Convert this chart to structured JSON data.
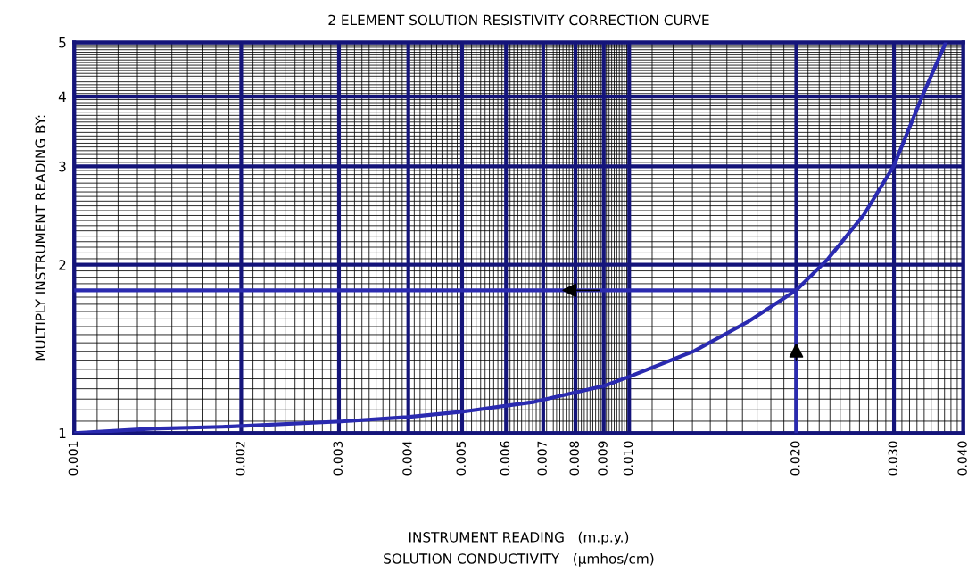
{
  "chart_data": {
    "type": "line",
    "title": "2 ELEMENT SOLUTION RESISTIVITY CORRECTION CURVE",
    "xlabel": "INSTRUMENT READING   (m.p.y.)\nSOLUTION CONDUCTIVITY   (μmhos/cm)",
    "ylabel": "MULTIPLY INSTRUMENT READING BY:",
    "log": "xy",
    "grid": true,
    "marker": "none",
    "line_style": "solid",
    "xlim": [
      0.001,
      0.04
    ],
    "ylim": [
      1,
      5
    ],
    "xticks": [
      0.001,
      0.002,
      0.003,
      0.004,
      0.005,
      0.006,
      0.007,
      0.008,
      0.009,
      {
        "value": 0.01,
        "label": "0.010"
      },
      {
        "value": 0.02,
        "label": "0.020"
      },
      {
        "value": 0.03,
        "label": "0.030"
      },
      {
        "value": 0.04,
        "label": "0.040"
      }
    ],
    "yticks": [
      1,
      2,
      3,
      4,
      5
    ],
    "series": [
      {
        "color": "#2a2ab0",
        "x": [
          0.001,
          0.00138,
          0.00185,
          0.00303,
          0.00398,
          0.00502,
          0.00675,
          0.00903,
          0.01,
          0.0131,
          0.0164,
          0.02,
          0.0228,
          0.0265,
          0.03,
          0.0336,
          0.0372
        ],
        "values": [
          1.0,
          1.018,
          1.026,
          1.049,
          1.068,
          1.092,
          1.137,
          1.215,
          1.261,
          1.402,
          1.583,
          1.8,
          2.047,
          2.461,
          3.01,
          3.97,
          5.0
        ]
      },
      {
        "color": "#2a2ab0",
        "x": [
          0.001,
          0.02,
          0.02
        ],
        "values": [
          1.8,
          1.8,
          1.0
        ]
      }
    ]
  }
}
